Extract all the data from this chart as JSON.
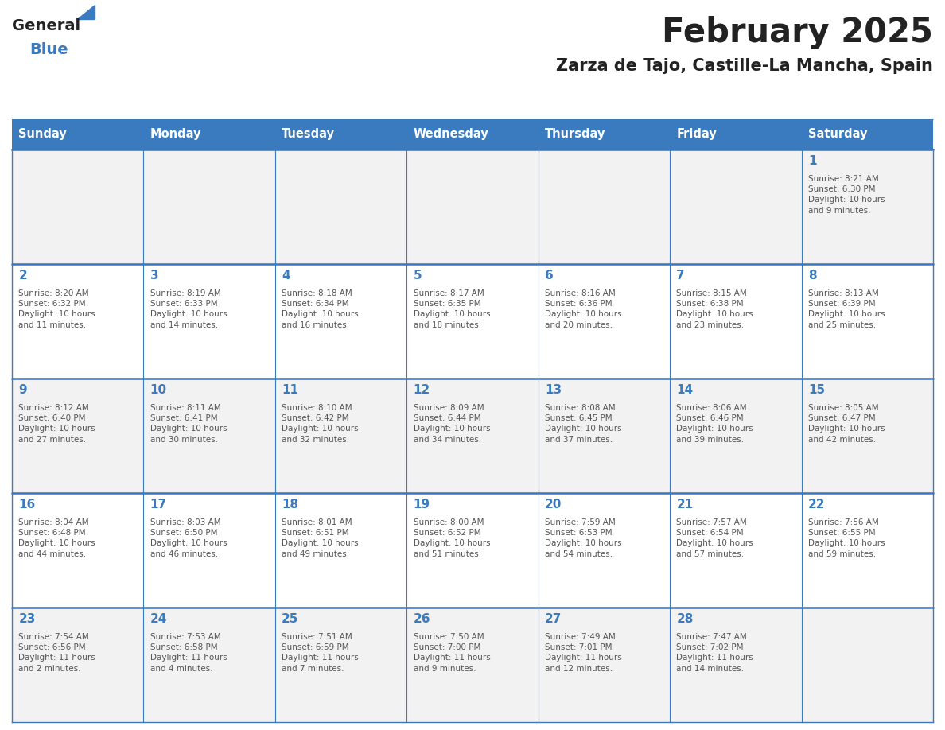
{
  "title": "February 2025",
  "subtitle": "Zarza de Tajo, Castille-La Mancha, Spain",
  "days_of_week": [
    "Sunday",
    "Monday",
    "Tuesday",
    "Wednesday",
    "Thursday",
    "Friday",
    "Saturday"
  ],
  "header_bg": "#3a7abf",
  "header_text": "#ffffff",
  "cell_bg_odd": "#f2f2f2",
  "cell_bg_even": "#ffffff",
  "cell_border": "#3a7abf",
  "day_num_color": "#3a7abf",
  "info_color": "#555555",
  "title_color": "#222222",
  "subtitle_color": "#222222",
  "logo_general_color": "#222222",
  "logo_blue_color": "#3a7abf",
  "weeks": [
    {
      "days": [
        {
          "day": null,
          "info": null
        },
        {
          "day": null,
          "info": null
        },
        {
          "day": null,
          "info": null
        },
        {
          "day": null,
          "info": null
        },
        {
          "day": null,
          "info": null
        },
        {
          "day": null,
          "info": null
        },
        {
          "day": 1,
          "info": "Sunrise: 8:21 AM\nSunset: 6:30 PM\nDaylight: 10 hours\nand 9 minutes."
        }
      ]
    },
    {
      "days": [
        {
          "day": 2,
          "info": "Sunrise: 8:20 AM\nSunset: 6:32 PM\nDaylight: 10 hours\nand 11 minutes."
        },
        {
          "day": 3,
          "info": "Sunrise: 8:19 AM\nSunset: 6:33 PM\nDaylight: 10 hours\nand 14 minutes."
        },
        {
          "day": 4,
          "info": "Sunrise: 8:18 AM\nSunset: 6:34 PM\nDaylight: 10 hours\nand 16 minutes."
        },
        {
          "day": 5,
          "info": "Sunrise: 8:17 AM\nSunset: 6:35 PM\nDaylight: 10 hours\nand 18 minutes."
        },
        {
          "day": 6,
          "info": "Sunrise: 8:16 AM\nSunset: 6:36 PM\nDaylight: 10 hours\nand 20 minutes."
        },
        {
          "day": 7,
          "info": "Sunrise: 8:15 AM\nSunset: 6:38 PM\nDaylight: 10 hours\nand 23 minutes."
        },
        {
          "day": 8,
          "info": "Sunrise: 8:13 AM\nSunset: 6:39 PM\nDaylight: 10 hours\nand 25 minutes."
        }
      ]
    },
    {
      "days": [
        {
          "day": 9,
          "info": "Sunrise: 8:12 AM\nSunset: 6:40 PM\nDaylight: 10 hours\nand 27 minutes."
        },
        {
          "day": 10,
          "info": "Sunrise: 8:11 AM\nSunset: 6:41 PM\nDaylight: 10 hours\nand 30 minutes."
        },
        {
          "day": 11,
          "info": "Sunrise: 8:10 AM\nSunset: 6:42 PM\nDaylight: 10 hours\nand 32 minutes."
        },
        {
          "day": 12,
          "info": "Sunrise: 8:09 AM\nSunset: 6:44 PM\nDaylight: 10 hours\nand 34 minutes."
        },
        {
          "day": 13,
          "info": "Sunrise: 8:08 AM\nSunset: 6:45 PM\nDaylight: 10 hours\nand 37 minutes."
        },
        {
          "day": 14,
          "info": "Sunrise: 8:06 AM\nSunset: 6:46 PM\nDaylight: 10 hours\nand 39 minutes."
        },
        {
          "day": 15,
          "info": "Sunrise: 8:05 AM\nSunset: 6:47 PM\nDaylight: 10 hours\nand 42 minutes."
        }
      ]
    },
    {
      "days": [
        {
          "day": 16,
          "info": "Sunrise: 8:04 AM\nSunset: 6:48 PM\nDaylight: 10 hours\nand 44 minutes."
        },
        {
          "day": 17,
          "info": "Sunrise: 8:03 AM\nSunset: 6:50 PM\nDaylight: 10 hours\nand 46 minutes."
        },
        {
          "day": 18,
          "info": "Sunrise: 8:01 AM\nSunset: 6:51 PM\nDaylight: 10 hours\nand 49 minutes."
        },
        {
          "day": 19,
          "info": "Sunrise: 8:00 AM\nSunset: 6:52 PM\nDaylight: 10 hours\nand 51 minutes."
        },
        {
          "day": 20,
          "info": "Sunrise: 7:59 AM\nSunset: 6:53 PM\nDaylight: 10 hours\nand 54 minutes."
        },
        {
          "day": 21,
          "info": "Sunrise: 7:57 AM\nSunset: 6:54 PM\nDaylight: 10 hours\nand 57 minutes."
        },
        {
          "day": 22,
          "info": "Sunrise: 7:56 AM\nSunset: 6:55 PM\nDaylight: 10 hours\nand 59 minutes."
        }
      ]
    },
    {
      "days": [
        {
          "day": 23,
          "info": "Sunrise: 7:54 AM\nSunset: 6:56 PM\nDaylight: 11 hours\nand 2 minutes."
        },
        {
          "day": 24,
          "info": "Sunrise: 7:53 AM\nSunset: 6:58 PM\nDaylight: 11 hours\nand 4 minutes."
        },
        {
          "day": 25,
          "info": "Sunrise: 7:51 AM\nSunset: 6:59 PM\nDaylight: 11 hours\nand 7 minutes."
        },
        {
          "day": 26,
          "info": "Sunrise: 7:50 AM\nSunset: 7:00 PM\nDaylight: 11 hours\nand 9 minutes."
        },
        {
          "day": 27,
          "info": "Sunrise: 7:49 AM\nSunset: 7:01 PM\nDaylight: 11 hours\nand 12 minutes."
        },
        {
          "day": 28,
          "info": "Sunrise: 7:47 AM\nSunset: 7:02 PM\nDaylight: 11 hours\nand 14 minutes."
        },
        {
          "day": null,
          "info": null
        }
      ]
    }
  ]
}
